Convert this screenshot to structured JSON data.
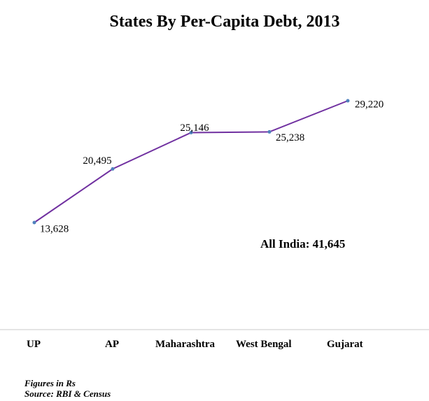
{
  "chart_data": {
    "type": "line",
    "title": "States By Per-Capita Debt, 2013",
    "categories": [
      "UP",
      "AP",
      "Maharashtra",
      "West Bengal",
      "Gujarat"
    ],
    "series": [
      {
        "values": [
          13628,
          20495,
          25146,
          25238,
          29220
        ],
        "labels": [
          "13,628",
          "20,495",
          "25,146",
          "25,238",
          "29,220"
        ],
        "color": "#7030a0",
        "marker_color": "#4f81bd"
      }
    ],
    "annotation": "All India: 41,645",
    "grid": false,
    "legend": "none"
  },
  "footnotes": {
    "units": "Figures in Rs",
    "source": "Source: RBI & Census"
  }
}
